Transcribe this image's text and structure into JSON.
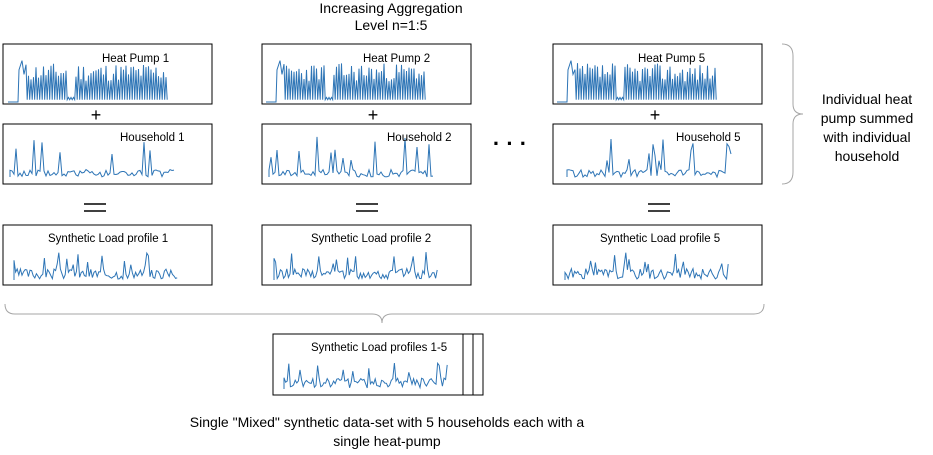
{
  "title": {
    "line1": "Increasing Aggregation",
    "line2": "Level n=1:5"
  },
  "heat_pumps": [
    "Heat Pump 1",
    "Heat Pump 2",
    "Heat Pump 5"
  ],
  "households": [
    "Household 1",
    "Household 2",
    "Household 5"
  ],
  "synthetic_profiles": [
    "Synthetic Load profile 1",
    "Synthetic Load profile 2",
    "Synthetic Load profile 5"
  ],
  "plus_sign": "+",
  "equals_sign": "=",
  "ellipsis": "· · ·",
  "combined_profile": "Synthetic Load profiles 1-5",
  "side_note": {
    "line1": "Individual heat",
    "line2": "pump summed",
    "line3": "with individual",
    "line4": "household"
  },
  "caption": {
    "line1": "Single \"Mixed\" synthetic data-set with 5 households each with a",
    "line2": "single heat-pump"
  },
  "colors": {
    "signal": "#2e75b6",
    "border": "#000000",
    "brace": "#a6a6a6"
  }
}
